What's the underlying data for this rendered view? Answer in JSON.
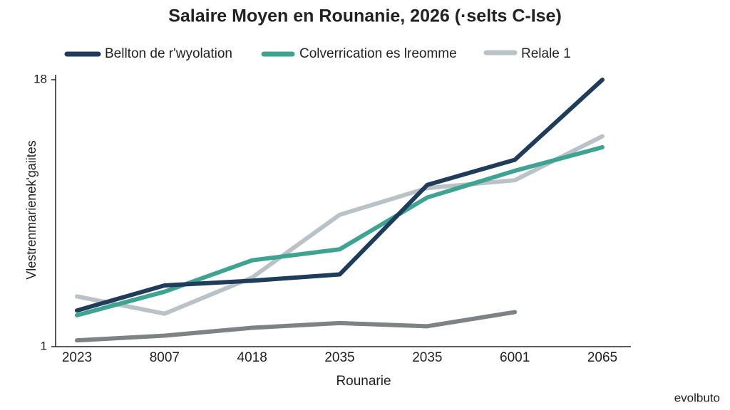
{
  "chart_data": {
    "type": "line",
    "title": "Salaire Moyen en Rounanie, 2026 (·selts C-Ise)",
    "x_label": "Rounarie",
    "y_label": "Vlestrenmarienek'gaiites",
    "watermark": "evolbuto",
    "categories": [
      "2023",
      "8007",
      "4018",
      "2035",
      "2035",
      "6001",
      "2065"
    ],
    "ylim": [
      1,
      18
    ],
    "yticks": [
      1,
      18
    ],
    "series": [
      {
        "name": "Bellton de r'wyolation",
        "color": "#1f3d5a",
        "values": [
          3.3,
          4.9,
          5.2,
          5.6,
          11.3,
          12.9,
          18
        ]
      },
      {
        "name": "Colverrication es lreomme",
        "color": "#3ea391",
        "values": [
          3.0,
          4.5,
          6.5,
          7.2,
          10.5,
          12.2,
          13.7
        ]
      },
      {
        "name": "Relale 1",
        "color": "#b9c2c7",
        "values": [
          4.2,
          3.1,
          5.4,
          9.4,
          11.1,
          11.6,
          14.4
        ]
      },
      {
        "color": "#7d8285",
        "values": [
          1.4,
          1.7,
          2.2,
          2.5,
          2.3,
          3.2,
          null
        ]
      }
    ]
  }
}
